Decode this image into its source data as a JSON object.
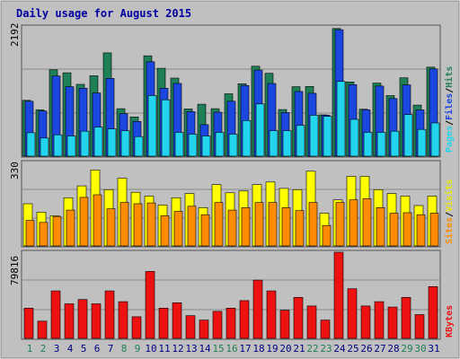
{
  "chart_data": {
    "type": "bar",
    "title": "Daily usage for August 2015",
    "categories": [
      "1",
      "2",
      "3",
      "4",
      "5",
      "6",
      "7",
      "8",
      "9",
      "10",
      "11",
      "12",
      "13",
      "14",
      "15",
      "16",
      "17",
      "18",
      "19",
      "20",
      "21",
      "22",
      "23",
      "24",
      "25",
      "26",
      "27",
      "28",
      "29",
      "30",
      "31"
    ],
    "weekend_days": [
      "1",
      "2",
      "8",
      "9",
      "15",
      "16",
      "22",
      "23",
      "29",
      "30"
    ],
    "panels": [
      {
        "id": "hits-files-pages",
        "max_label": "2192",
        "ymax": 2192,
        "legend": [
          "Pages",
          "/",
          "Files",
          "/",
          "Hits"
        ],
        "series": [
          {
            "name": "Hits",
            "color": "#1f7f56",
            "values": [
              940,
              780,
              1455,
              1405,
              1210,
              1355,
              1740,
              800,
              660,
              1690,
              1480,
              1315,
              795,
              875,
              800,
              1050,
              1220,
              1515,
              1395,
              785,
              1170,
              1175,
              695,
              2150,
              1250,
              790,
              1230,
              1020,
              1320,
              860,
              1500
            ]
          },
          {
            "name": "Files",
            "color": "#1c46e0",
            "values": [
              925,
              760,
              1350,
              1170,
              1145,
              1065,
              1310,
              715,
              585,
              1590,
              1145,
              1225,
              750,
              530,
              740,
              925,
              1190,
              1450,
              1225,
              735,
              1090,
              1060,
              690,
              2130,
              1205,
              780,
              1180,
              970,
              1200,
              780,
              1470
            ]
          },
          {
            "name": "Pages",
            "color": "#22d4ee",
            "values": [
              395,
              305,
              360,
              340,
              420,
              490,
              460,
              430,
              330,
              1020,
              950,
              400,
              370,
              340,
              400,
              370,
              600,
              880,
              430,
              430,
              520,
              690,
              670,
              1260,
              620,
              400,
              400,
              420,
              700,
              450,
              560
            ]
          }
        ]
      },
      {
        "id": "visits-sites",
        "max_label": "330",
        "ymax": 330,
        "legend": [
          "Sites",
          "/",
          "Visits"
        ],
        "series": [
          {
            "name": "Visits",
            "color": "#ffff00",
            "values": [
              165,
              132,
              118,
              188,
              235,
              297,
              220,
              265,
              210,
              195,
              160,
              188,
              205,
              150,
              240,
              208,
              215,
              240,
              250,
              225,
              220,
              292,
              128,
              180,
              272,
              272,
              220,
              205,
              195,
              158,
              195
            ]
          },
          {
            "name": "Sites",
            "color": "#ff8c00",
            "values": [
              100,
              92,
              115,
              140,
              190,
              200,
              145,
              170,
              165,
              168,
              118,
              135,
              155,
              122,
              170,
              140,
              150,
              170,
              170,
              150,
              138,
              170,
              80,
              170,
              180,
              185,
              150,
              128,
              130,
              122,
              128
            ]
          }
        ]
      },
      {
        "id": "kbytes",
        "max_label": "79816",
        "ymax": 79816,
        "legend": [
          "KBytes"
        ],
        "series": [
          {
            "name": "KBytes",
            "color": "#ee1111",
            "values": [
              28000,
              16000,
              44000,
              32000,
              36000,
              32000,
              44000,
              34000,
              20000,
              62000,
              28000,
              33000,
              21000,
              17000,
              25000,
              28000,
              35000,
              54000,
              44000,
              26000,
              38000,
              30000,
              17000,
              80000,
              46000,
              30000,
              34000,
              29000,
              38000,
              22000,
              48000
            ]
          }
        ]
      }
    ]
  }
}
